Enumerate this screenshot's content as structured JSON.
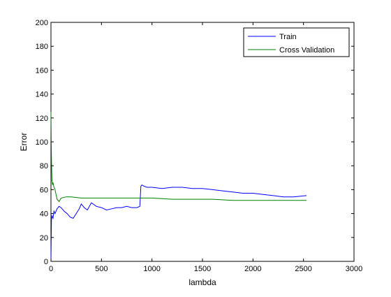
{
  "chart_data": {
    "type": "line",
    "title": "",
    "xlabel": "lambda",
    "ylabel": "Error",
    "xlim": [
      0,
      3000
    ],
    "ylim": [
      0,
      200
    ],
    "xticks": [
      0,
      500,
      1000,
      1500,
      2000,
      2500,
      3000
    ],
    "yticks": [
      0,
      20,
      40,
      60,
      80,
      100,
      120,
      140,
      160,
      180,
      200
    ],
    "grid": false,
    "legend_position": "top-right",
    "series": [
      {
        "name": "Train",
        "color": "#0000ff",
        "x": [
          0,
          5,
          10,
          20,
          30,
          40,
          60,
          80,
          100,
          130,
          160,
          190,
          220,
          250,
          280,
          300,
          330,
          360,
          400,
          450,
          500,
          550,
          600,
          650,
          700,
          750,
          800,
          850,
          880,
          890,
          900,
          920,
          950,
          1000,
          1100,
          1200,
          1300,
          1400,
          1500,
          1600,
          1700,
          1800,
          1900,
          2000,
          2100,
          2200,
          2300,
          2400,
          2530
        ],
        "y": [
          2,
          35,
          38,
          36,
          42,
          40,
          44,
          46,
          45,
          42,
          40,
          37,
          36,
          40,
          44,
          48,
          45,
          43,
          49,
          46,
          45,
          43,
          44,
          45,
          45,
          46,
          45,
          45,
          46,
          63,
          64,
          63,
          62,
          62,
          61,
          62,
          62,
          61,
          61,
          60,
          59,
          58,
          57,
          57,
          56,
          55,
          54,
          54,
          55
        ]
      },
      {
        "name": "Cross Validation",
        "color": "#008000",
        "x": [
          0,
          3,
          6,
          10,
          15,
          20,
          30,
          40,
          60,
          80,
          100,
          150,
          200,
          300,
          400,
          500,
          600,
          700,
          800,
          900,
          1000,
          1200,
          1400,
          1600,
          1800,
          2000,
          2200,
          2400,
          2530
        ],
        "y": [
          125,
          100,
          80,
          68,
          64,
          66,
          62,
          60,
          52,
          50,
          53,
          54,
          54,
          53,
          53,
          53,
          53,
          53,
          53,
          53,
          53,
          52,
          52,
          52,
          51,
          51,
          51,
          51,
          51
        ]
      }
    ]
  }
}
